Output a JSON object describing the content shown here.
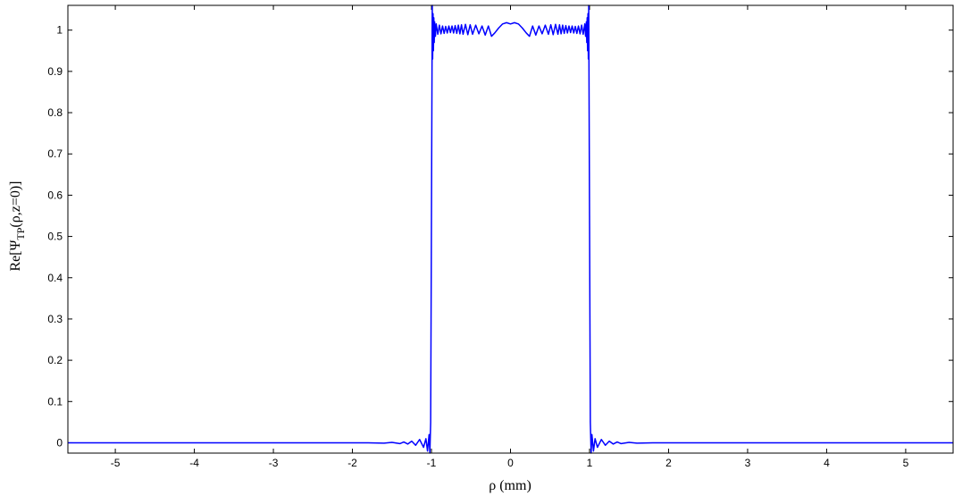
{
  "chart_data": {
    "type": "line",
    "title": "",
    "xlabel": "ρ (mm)",
    "ylabel_parts": {
      "prefix": "Re[Ψ",
      "subscript": "TP",
      "suffix": "(ρ,z=0)]"
    },
    "xlim": [
      -5.6,
      5.6
    ],
    "ylim": [
      -0.025,
      1.06
    ],
    "xticks": [
      -5,
      -4,
      -3,
      -2,
      -1,
      0,
      1,
      2,
      3,
      4,
      5
    ],
    "xtick_labels": [
      "-5",
      "-4",
      "-3",
      "-2",
      "-1",
      "0",
      "1",
      "2",
      "3",
      "4",
      "5"
    ],
    "yticks": [
      0,
      0.1,
      0.2,
      0.3,
      0.4,
      0.5,
      0.6,
      0.7,
      0.8,
      0.9,
      1
    ],
    "ytick_labels": [
      "0",
      "0.1",
      "0.2",
      "0.3",
      "0.4",
      "0.5",
      "0.6",
      "0.7",
      "0.8",
      "0.9",
      "1"
    ],
    "grid": false,
    "series": [
      {
        "color": "#0000ff",
        "x": [
          -5.6,
          -2.0,
          -1.8,
          -1.6,
          -1.5,
          -1.4,
          -1.35,
          -1.3,
          -1.25,
          -1.2,
          -1.15,
          -1.1,
          -1.07,
          -1.05,
          -1.03,
          -1.02,
          -1.01,
          -1.005,
          -1.0,
          -0.995,
          -0.99,
          -0.985,
          -0.98,
          -0.975,
          -0.97,
          -0.965,
          -0.96,
          -0.95,
          -0.94,
          -0.92,
          -0.9,
          -0.88,
          -0.86,
          -0.84,
          -0.82,
          -0.8,
          -0.78,
          -0.76,
          -0.74,
          -0.72,
          -0.7,
          -0.68,
          -0.66,
          -0.64,
          -0.62,
          -0.6,
          -0.57,
          -0.54,
          -0.51,
          -0.48,
          -0.44,
          -0.4,
          -0.36,
          -0.32,
          -0.28,
          -0.24,
          -0.2,
          -0.15,
          -0.1,
          -0.05,
          0.0,
          0.05,
          0.1,
          0.15,
          0.2,
          0.24,
          0.28,
          0.32,
          0.36,
          0.4,
          0.44,
          0.48,
          0.51,
          0.54,
          0.57,
          0.6,
          0.62,
          0.64,
          0.66,
          0.68,
          0.7,
          0.72,
          0.74,
          0.76,
          0.78,
          0.8,
          0.82,
          0.84,
          0.86,
          0.88,
          0.9,
          0.92,
          0.94,
          0.95,
          0.96,
          0.965,
          0.97,
          0.975,
          0.98,
          0.985,
          0.99,
          0.995,
          1.0,
          1.005,
          1.01,
          1.02,
          1.03,
          1.05,
          1.07,
          1.1,
          1.15,
          1.2,
          1.25,
          1.3,
          1.35,
          1.4,
          1.5,
          1.6,
          1.8,
          2.0,
          5.6
        ],
        "y": [
          0.0,
          0.0,
          0.0,
          -0.001,
          0.001,
          -0.002,
          0.002,
          -0.003,
          0.004,
          -0.006,
          0.008,
          -0.011,
          0.01,
          -0.02,
          0.02,
          -0.03,
          0.05,
          0.3,
          0.55,
          0.8,
          1.06,
          0.93,
          1.04,
          0.95,
          1.03,
          0.97,
          1.02,
          0.985,
          1.015,
          0.99,
          1.012,
          0.991,
          1.01,
          0.992,
          1.009,
          0.993,
          1.01,
          0.994,
          1.01,
          0.993,
          1.011,
          0.992,
          1.012,
          0.991,
          1.013,
          0.99,
          1.014,
          0.989,
          1.013,
          0.99,
          1.012,
          0.991,
          1.01,
          0.988,
          1.01,
          0.985,
          0.993,
          1.005,
          1.015,
          1.018,
          1.015,
          1.018,
          1.015,
          1.005,
          0.993,
          0.985,
          1.01,
          0.988,
          1.01,
          0.991,
          1.012,
          0.99,
          1.013,
          0.989,
          1.014,
          0.99,
          1.013,
          0.991,
          1.012,
          0.992,
          1.011,
          0.993,
          1.01,
          0.994,
          1.01,
          0.993,
          1.009,
          0.992,
          1.01,
          0.991,
          1.012,
          0.99,
          1.015,
          0.985,
          1.02,
          0.97,
          1.03,
          0.95,
          1.04,
          0.93,
          1.06,
          0.8,
          0.55,
          0.3,
          0.05,
          -0.03,
          0.02,
          -0.02,
          0.01,
          -0.011,
          0.008,
          -0.006,
          0.004,
          -0.003,
          0.002,
          -0.002,
          0.001,
          -0.001,
          0.0,
          0.0,
          0.0
        ]
      }
    ]
  }
}
